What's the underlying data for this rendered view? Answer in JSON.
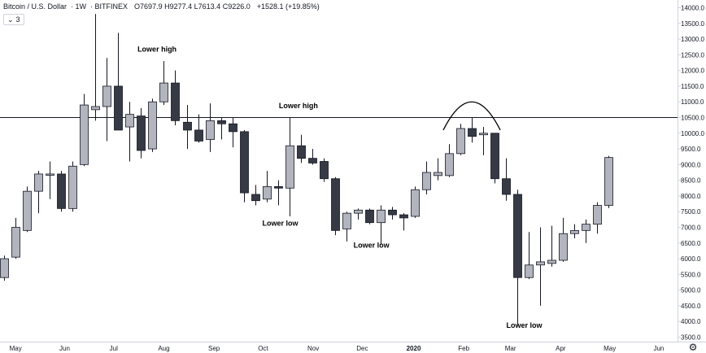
{
  "legend": {
    "symbol": "Bitcoin / U.S. Dollar",
    "interval": "1W",
    "exchange": "BITFINEX",
    "open": "O7697.9",
    "high": "H9277.4",
    "low": "L7613.4",
    "close": "C9226.0",
    "change": "+1528.1 (+19.85%)"
  },
  "indicator_badge": {
    "chevron": "⌄",
    "count": "3"
  },
  "settings_icon": "gear-icon",
  "colors": {
    "up_fill": "#b2b5be",
    "down_fill": "#363a45",
    "wick": "#131722",
    "hline": "#131722",
    "axis_border": "#d1d4dc"
  },
  "chart_data": {
    "type": "candlestick",
    "symbol": "BTCUSD",
    "interval": "1W",
    "ylim": [
      3500,
      14250
    ],
    "y_ticks": [
      "14000.0",
      "13500.0",
      "13000.0",
      "12500.0",
      "12000.0",
      "11500.0",
      "11000.0",
      "10500.0",
      "10000.0",
      "9500.0",
      "9000.0",
      "8500.0",
      "8000.0",
      "7500.0",
      "7000.0",
      "6500.0",
      "6000.0",
      "5500.0",
      "5000.0",
      "4500.0",
      "4000.0",
      "3500.0"
    ],
    "x_ticks": [
      {
        "label": "May",
        "index": 0
      },
      {
        "label": "Jun",
        "index": 4.3
      },
      {
        "label": "Jul",
        "index": 8.6
      },
      {
        "label": "Aug",
        "index": 13.0
      },
      {
        "label": "Sep",
        "index": 17.4
      },
      {
        "label": "Oct",
        "index": 21.7
      },
      {
        "label": "Nov",
        "index": 26.1
      },
      {
        "label": "Dec",
        "index": 30.4
      },
      {
        "label": "2020",
        "index": 34.9,
        "bold": true
      },
      {
        "label": "Feb",
        "index": 39.3
      },
      {
        "label": "Mar",
        "index": 43.4
      },
      {
        "label": "Apr",
        "index": 47.8
      },
      {
        "label": "May",
        "index": 52.1
      },
      {
        "label": "Jun",
        "index": 56.4
      }
    ],
    "horizontal_line": 10500,
    "candles": [
      {
        "o": 5400,
        "h": 6100,
        "l": 5300,
        "c": 6000
      },
      {
        "o": 6050,
        "h": 7300,
        "l": 6000,
        "c": 7000
      },
      {
        "o": 6900,
        "h": 8300,
        "l": 6850,
        "c": 8150
      },
      {
        "o": 8150,
        "h": 8800,
        "l": 7450,
        "c": 8700
      },
      {
        "o": 8700,
        "h": 9100,
        "l": 7900,
        "c": 8700
      },
      {
        "o": 8700,
        "h": 8800,
        "l": 7500,
        "c": 7600
      },
      {
        "o": 7600,
        "h": 9100,
        "l": 7500,
        "c": 8950
      },
      {
        "o": 9000,
        "h": 11250,
        "l": 8950,
        "c": 10900
      },
      {
        "o": 10750,
        "h": 13800,
        "l": 10400,
        "c": 10850
      },
      {
        "o": 10850,
        "h": 12400,
        "l": 9750,
        "c": 11500
      },
      {
        "o": 11500,
        "h": 13200,
        "l": 10100,
        "c": 10100
      },
      {
        "o": 10200,
        "h": 11000,
        "l": 9100,
        "c": 10600
      },
      {
        "o": 10550,
        "h": 10800,
        "l": 9200,
        "c": 9450
      },
      {
        "o": 9500,
        "h": 11100,
        "l": 9400,
        "c": 11000
      },
      {
        "o": 11000,
        "h": 12300,
        "l": 10900,
        "c": 11600
      },
      {
        "o": 11600,
        "h": 12000,
        "l": 10250,
        "c": 10400
      },
      {
        "o": 10350,
        "h": 10900,
        "l": 9500,
        "c": 10100
      },
      {
        "o": 10100,
        "h": 10600,
        "l": 9700,
        "c": 9750
      },
      {
        "o": 9800,
        "h": 10950,
        "l": 9400,
        "c": 10400
      },
      {
        "o": 10400,
        "h": 10500,
        "l": 9800,
        "c": 10300
      },
      {
        "o": 10300,
        "h": 10500,
        "l": 9550,
        "c": 10050
      },
      {
        "o": 10050,
        "h": 10100,
        "l": 7800,
        "c": 8100
      },
      {
        "o": 8050,
        "h": 8350,
        "l": 7700,
        "c": 7850
      },
      {
        "o": 7900,
        "h": 8800,
        "l": 7800,
        "c": 8300
      },
      {
        "o": 8300,
        "h": 8500,
        "l": 7700,
        "c": 8250
      },
      {
        "o": 8250,
        "h": 10500,
        "l": 7350,
        "c": 9600
      },
      {
        "o": 9600,
        "h": 9950,
        "l": 9050,
        "c": 9200
      },
      {
        "o": 9200,
        "h": 9500,
        "l": 9000,
        "c": 9050
      },
      {
        "o": 9100,
        "h": 9200,
        "l": 8450,
        "c": 8550
      },
      {
        "o": 8550,
        "h": 8600,
        "l": 6750,
        "c": 6900
      },
      {
        "o": 6950,
        "h": 7500,
        "l": 6550,
        "c": 7450
      },
      {
        "o": 7450,
        "h": 7600,
        "l": 7250,
        "c": 7550
      },
      {
        "o": 7550,
        "h": 7600,
        "l": 7100,
        "c": 7150
      },
      {
        "o": 7150,
        "h": 7700,
        "l": 6450,
        "c": 7550
      },
      {
        "o": 7550,
        "h": 7650,
        "l": 7250,
        "c": 7400
      },
      {
        "o": 7400,
        "h": 7450,
        "l": 6900,
        "c": 7300
      },
      {
        "o": 7350,
        "h": 8300,
        "l": 7300,
        "c": 8200
      },
      {
        "o": 8200,
        "h": 9100,
        "l": 8050,
        "c": 8750
      },
      {
        "o": 8650,
        "h": 9200,
        "l": 8500,
        "c": 8750
      },
      {
        "o": 8650,
        "h": 9650,
        "l": 8600,
        "c": 9350
      },
      {
        "o": 9350,
        "h": 10300,
        "l": 9300,
        "c": 10150
      },
      {
        "o": 10150,
        "h": 10500,
        "l": 9700,
        "c": 9900
      },
      {
        "o": 9950,
        "h": 10200,
        "l": 9300,
        "c": 10000
      },
      {
        "o": 10000,
        "h": 10000,
        "l": 8400,
        "c": 8550
      },
      {
        "o": 8550,
        "h": 9200,
        "l": 7850,
        "c": 8050
      },
      {
        "o": 8050,
        "h": 8200,
        "l": 3850,
        "c": 5400
      },
      {
        "o": 5400,
        "h": 6850,
        "l": 5350,
        "c": 5800
      },
      {
        "o": 5800,
        "h": 7000,
        "l": 4500,
        "c": 5900
      },
      {
        "o": 5850,
        "h": 7050,
        "l": 5750,
        "c": 5950
      },
      {
        "o": 5950,
        "h": 7300,
        "l": 5900,
        "c": 6800
      },
      {
        "o": 6800,
        "h": 7100,
        "l": 6650,
        "c": 6900
      },
      {
        "o": 6900,
        "h": 7250,
        "l": 6500,
        "c": 7100
      },
      {
        "o": 7100,
        "h": 7800,
        "l": 6800,
        "c": 7700
      },
      {
        "o": 7700,
        "h": 9277.4,
        "l": 7613.4,
        "c": 9226
      }
    ],
    "annotations": [
      {
        "text": "Lower high",
        "index": 13.4,
        "price": 12600
      },
      {
        "text": "Lower high",
        "index": 25.8,
        "price": 10800
      },
      {
        "text": "Lower low",
        "index": 24.2,
        "price": 7050
      },
      {
        "text": "Lower low",
        "index": 32.2,
        "price": 6350
      },
      {
        "text": "Lower low",
        "index": 45.6,
        "price": 3800
      }
    ],
    "arc": {
      "start_index": 38.5,
      "end_index": 43.5,
      "base_price": 10100,
      "peak_price": 11000
    }
  }
}
